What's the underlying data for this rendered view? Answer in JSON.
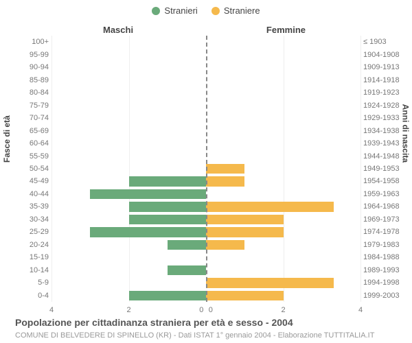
{
  "legend": [
    {
      "label": "Stranieri",
      "color": "#6aaa7a"
    },
    {
      "label": "Straniere",
      "color": "#f5b94c"
    }
  ],
  "column_headers": {
    "left": "Maschi",
    "right": "Femmine"
  },
  "y_axis_label_left": "Fasce di età",
  "y_axis_label_right": "Anni di nascita",
  "x_max": 4,
  "x_ticks": [
    4,
    2,
    0,
    0,
    2,
    4
  ],
  "grid_color": "#eee",
  "centerline_color": "#888",
  "bar_color_male": "#6aaa7a",
  "bar_color_female": "#f5b94c",
  "background": "#ffffff",
  "label_fontsize": 11,
  "label_color": "#777777",
  "header_fontsize": 13,
  "header_color": "#444444",
  "rows": [
    {
      "age": "100+",
      "birth": "≤ 1903",
      "m": 0,
      "f": 0
    },
    {
      "age": "95-99",
      "birth": "1904-1908",
      "m": 0,
      "f": 0
    },
    {
      "age": "90-94",
      "birth": "1909-1913",
      "m": 0,
      "f": 0
    },
    {
      "age": "85-89",
      "birth": "1914-1918",
      "m": 0,
      "f": 0
    },
    {
      "age": "80-84",
      "birth": "1919-1923",
      "m": 0,
      "f": 0
    },
    {
      "age": "75-79",
      "birth": "1924-1928",
      "m": 0,
      "f": 0
    },
    {
      "age": "70-74",
      "birth": "1929-1933",
      "m": 0,
      "f": 0
    },
    {
      "age": "65-69",
      "birth": "1934-1938",
      "m": 0,
      "f": 0
    },
    {
      "age": "60-64",
      "birth": "1939-1943",
      "m": 0,
      "f": 0
    },
    {
      "age": "55-59",
      "birth": "1944-1948",
      "m": 0,
      "f": 0
    },
    {
      "age": "50-54",
      "birth": "1949-1953",
      "m": 0,
      "f": 1
    },
    {
      "age": "45-49",
      "birth": "1954-1958",
      "m": 2,
      "f": 1
    },
    {
      "age": "40-44",
      "birth": "1959-1963",
      "m": 3,
      "f": 0
    },
    {
      "age": "35-39",
      "birth": "1964-1968",
      "m": 2,
      "f": 3.3
    },
    {
      "age": "30-34",
      "birth": "1969-1973",
      "m": 2,
      "f": 2
    },
    {
      "age": "25-29",
      "birth": "1974-1978",
      "m": 3,
      "f": 2
    },
    {
      "age": "20-24",
      "birth": "1979-1983",
      "m": 1,
      "f": 1
    },
    {
      "age": "15-19",
      "birth": "1984-1988",
      "m": 0,
      "f": 0
    },
    {
      "age": "10-14",
      "birth": "1989-1993",
      "m": 1,
      "f": 0
    },
    {
      "age": "5-9",
      "birth": "1994-1998",
      "m": 0,
      "f": 3.3
    },
    {
      "age": "0-4",
      "birth": "1999-2003",
      "m": 2,
      "f": 2
    }
  ],
  "caption": "Popolazione per cittadinanza straniera per età e sesso - 2004",
  "caption2": "COMUNE DI BELVEDERE DI SPINELLO (KR) - Dati ISTAT 1° gennaio 2004 - Elaborazione TUTTITALIA.IT"
}
